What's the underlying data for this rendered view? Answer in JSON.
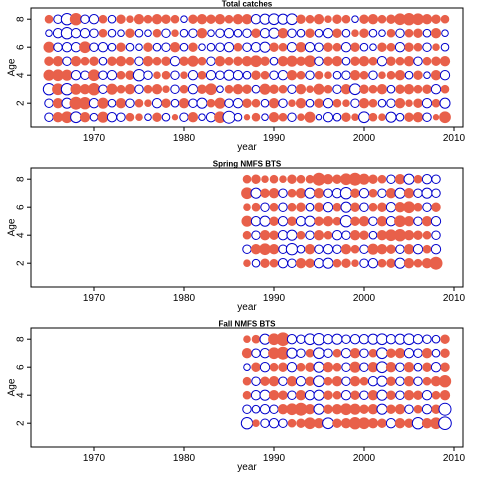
{
  "colors": {
    "positive": "#e8604a",
    "negative": "#0000cc",
    "axis": "#000000"
  },
  "chart_data": [
    {
      "type": "scatter",
      "title": "Total catches",
      "xlabel": "year",
      "ylabel": "Age",
      "xlim": [
        1963,
        2011
      ],
      "ylim": [
        0.3,
        8.8
      ],
      "xticks": [
        1970,
        1980,
        1990,
        2000,
        2010
      ],
      "yticks": [
        2,
        4,
        6,
        8
      ],
      "grid": false,
      "legend": "none",
      "x_start": 1965,
      "x_end": 2009,
      "ages": [
        1,
        2,
        3,
        4,
        5,
        6,
        7,
        8
      ],
      "residuals": [
        [
          -0.5,
          0.6,
          0.8,
          -0.8,
          0.6,
          -0.4,
          0.7,
          -0.6,
          -0.5,
          0.4,
          0.3,
          -0.3,
          0.5,
          -0.4,
          0.2,
          -0.5,
          0.6,
          -0.3,
          -0.6,
          0.8,
          -1.0,
          -0.4,
          0.2,
          0.4,
          -0.3,
          0.6,
          0.4,
          -0.5,
          0.3,
          0.7,
          -0.2,
          -0.6,
          -0.4,
          0.5,
          0.3,
          -0.8,
          0.4,
          0.3,
          -0.7,
          -0.4,
          0.5,
          0.6,
          -0.5,
          0.2,
          0.8
        ],
        [
          -0.5,
          0.6,
          -0.7,
          1.0,
          0.9,
          -0.6,
          0.7,
          -0.4,
          0.6,
          -0.5,
          0.4,
          0.3,
          -0.6,
          0.5,
          -0.4,
          0.6,
          -0.5,
          -0.7,
          0.4,
          0.7,
          -0.5,
          -0.6,
          0.5,
          0.4,
          -0.4,
          0.6,
          -0.5,
          0.3,
          0.6,
          -0.4,
          0.5,
          -0.6,
          0.4,
          0.3,
          -0.5,
          0.6,
          0.4,
          -0.4,
          -0.5,
          0.6,
          0.3,
          0.5,
          -0.6,
          0.4,
          -0.7
        ],
        [
          -0.9,
          0.8,
          -0.9,
          0.7,
          0.6,
          0.9,
          -0.5,
          0.7,
          0.4,
          0.6,
          -0.5,
          0.4,
          0.6,
          0.3,
          -0.5,
          0.4,
          -0.6,
          0.5,
          0.8,
          -0.3,
          0.4,
          0.6,
          0.5,
          -0.4,
          0.7,
          0.5,
          0.4,
          -0.5,
          0.6,
          0.3,
          0.7,
          0.4,
          -0.5,
          0.6,
          -0.8,
          0.5,
          0.4,
          0.6,
          -0.4,
          0.5,
          0.6,
          0.4,
          0.5,
          -0.6,
          0.4
        ],
        [
          0.7,
          0.8,
          0.7,
          -0.6,
          -0.5,
          0.8,
          -0.5,
          -0.6,
          0.4,
          0.5,
          -0.9,
          -0.5,
          0.3,
          0.4,
          -0.5,
          0.3,
          -0.6,
          0.4,
          -0.6,
          -0.5,
          -0.7,
          -0.6,
          -0.4,
          0.5,
          0.4,
          -0.5,
          -0.6,
          0.6,
          0.4,
          -0.5,
          0.4,
          0.3,
          -0.4,
          -0.5,
          0.6,
          0.4,
          -0.5,
          0.3,
          0.4,
          0.6,
          -0.4,
          0.5,
          -0.3,
          0.6,
          -0.6
        ],
        [
          0.5,
          0.6,
          -0.5,
          0.6,
          0.4,
          0.5,
          -0.4,
          0.5,
          0.6,
          0.4,
          -0.5,
          0.6,
          0.4,
          0.5,
          -0.6,
          0.5,
          0.7,
          0.4,
          -0.5,
          0.6,
          0.4,
          0.5,
          0.6,
          0.8,
          0.5,
          -0.4,
          0.6,
          0.7,
          0.5,
          0.8,
          -0.5,
          0.5,
          0.6,
          -0.4,
          0.5,
          0.6,
          0.4,
          -0.6,
          0.5,
          0.4,
          0.6,
          -0.5,
          0.4,
          0.5,
          0.6
        ],
        [
          0.7,
          -0.5,
          -0.6,
          -0.6,
          0.8,
          -0.5,
          -0.6,
          -0.4,
          0.5,
          -0.4,
          -0.3,
          0.5,
          -0.4,
          -0.5,
          0.6,
          -0.4,
          0.5,
          -0.3,
          -0.4,
          -0.5,
          -0.6,
          0.4,
          -0.5,
          -0.6,
          -0.7,
          0.5,
          0.4,
          -0.6,
          0.6,
          -0.6,
          -0.5,
          0.5,
          0.4,
          -0.6,
          0.5,
          -0.4,
          -0.3,
          0.5,
          0.4,
          -0.6,
          0.5,
          0.4,
          -0.5,
          0.3,
          -0.4
        ],
        [
          -0.3,
          -0.6,
          -0.9,
          -0.6,
          -0.6,
          -0.5,
          0.4,
          -0.4,
          -0.3,
          0.5,
          -0.4,
          -0.3,
          0.4,
          -0.5,
          0.3,
          -0.4,
          -0.5,
          0.6,
          -0.3,
          -0.5,
          -0.6,
          -0.4,
          -0.5,
          0.5,
          -0.6,
          -0.7,
          0.6,
          -0.5,
          -0.4,
          0.5,
          -0.4,
          -0.6,
          0.5,
          -0.4,
          0.3,
          0.5,
          -0.4,
          -0.3,
          0.4,
          -0.5,
          0.4,
          0.5,
          -0.4,
          0.6,
          -0.3
        ],
        [
          0.4,
          -0.5,
          -0.9,
          0.9,
          -0.5,
          -0.6,
          0.4,
          -0.4,
          0.5,
          0.3,
          0.6,
          0.4,
          0.6,
          0.5,
          0.4,
          -0.3,
          0.5,
          0.6,
          0.5,
          0.6,
          0.4,
          0.6,
          0.6,
          -0.6,
          -0.7,
          -0.8,
          -0.7,
          -0.8,
          0.5,
          0.4,
          0.6,
          0.3,
          0.5,
          0.4,
          -0.3,
          0.5,
          0.6,
          0.4,
          0.5,
          0.8,
          0.9,
          0.8,
          0.6,
          0.5,
          0.4
        ]
      ]
    },
    {
      "type": "scatter",
      "title": "Spring NMFS BTS",
      "xlabel": "year",
      "ylabel": "Age",
      "xlim": [
        1963,
        2011
      ],
      "ylim": [
        0.3,
        8.8
      ],
      "xticks": [
        1970,
        1980,
        1990,
        2000,
        2010
      ],
      "yticks": [
        2,
        4,
        6,
        8
      ],
      "grid": false,
      "legend": "none",
      "x_start": 1987,
      "x_end": 2008,
      "ages": [
        2,
        3,
        4,
        5,
        6,
        7,
        8
      ],
      "residuals": [
        [
          0.3,
          -0.4,
          0.5,
          0.4,
          -0.6,
          -0.5,
          0.6,
          0.5,
          -0.6,
          -0.7,
          0.4,
          0.5,
          0.3,
          -0.5,
          -0.6,
          0.4,
          0.5,
          -0.7,
          0.6,
          0.4,
          0.6,
          1.0
        ],
        [
          -0.5,
          0.6,
          0.8,
          0.6,
          -0.5,
          -0.9,
          -0.4,
          0.6,
          -0.5,
          -0.6,
          -0.5,
          0.6,
          0.4,
          -0.5,
          0.7,
          0.6,
          0.5,
          -0.5,
          0.6,
          -0.6,
          0.4,
          -0.6
        ],
        [
          0.4,
          -0.5,
          0.6,
          0.5,
          -0.6,
          -0.7,
          0.4,
          -0.5,
          0.6,
          0.4,
          -0.6,
          -0.5,
          0.6,
          0.5,
          -0.4,
          0.6,
          0.8,
          0.9,
          0.6,
          0.5,
          0.4,
          -0.5
        ],
        [
          0.7,
          -0.6,
          -0.7,
          0.5,
          -0.6,
          0.5,
          -0.6,
          -0.7,
          0.5,
          0.6,
          0.4,
          -0.9,
          0.5,
          0.6,
          -0.5,
          0.6,
          -0.6,
          0.8,
          0.6,
          -0.5,
          0.6,
          -0.6
        ],
        [
          0.3,
          0.4,
          -0.5,
          0.4,
          -0.5,
          0.4,
          0.5,
          -0.4,
          0.5,
          -0.6,
          0.4,
          -0.7,
          0.5,
          -0.5,
          0.4,
          0.5,
          -0.6,
          0.6,
          0.8,
          0.4,
          -0.5,
          0.5
        ],
        [
          0.8,
          -0.7,
          0.5,
          0.6,
          -0.5,
          0.4,
          0.6,
          -0.7,
          0.6,
          -0.5,
          -0.6,
          -0.9,
          0.5,
          -0.6,
          0.4,
          -0.5,
          0.6,
          -0.7,
          0.6,
          -0.5,
          -0.7,
          -0.5
        ],
        [
          0.4,
          0.5,
          0.3,
          0.4,
          0.3,
          0.5,
          0.4,
          0.4,
          1.0,
          0.6,
          0.5,
          0.8,
          1.0,
          0.7,
          0.5,
          0.4,
          -0.5,
          0.6,
          -0.7,
          0.4,
          -0.6,
          -0.5
        ]
      ]
    },
    {
      "type": "scatter",
      "title": "Fall NMFS BTS",
      "xlabel": "year",
      "ylabel": "Age",
      "xlim": [
        1963,
        2011
      ],
      "ylim": [
        0.3,
        8.8
      ],
      "xticks": [
        1970,
        1980,
        1990,
        2000,
        2010
      ],
      "yticks": [
        2,
        4,
        6,
        8
      ],
      "grid": false,
      "legend": "none",
      "x_start": 1987,
      "x_end": 2009,
      "ages": [
        2,
        3,
        4,
        5,
        6,
        7,
        8
      ],
      "residuals": [
        [
          -0.9,
          0.3,
          -0.5,
          -0.6,
          -0.5,
          0.4,
          0.5,
          0.8,
          0.6,
          -0.8,
          0.5,
          0.6,
          0.9,
          0.8,
          0.6,
          0.5,
          -0.6,
          0.6,
          0.5,
          -0.9,
          0.6,
          0.8,
          -1.1
        ],
        [
          -0.5,
          -0.4,
          -0.6,
          -0.5,
          0.6,
          0.8,
          1.0,
          0.6,
          -0.7,
          0.5,
          0.6,
          0.8,
          0.7,
          0.5,
          0.6,
          -0.7,
          0.5,
          0.6,
          -0.5,
          0.4,
          -0.6,
          0.5,
          -1.0
        ],
        [
          0.4,
          -0.6,
          -0.7,
          0.6,
          0.5,
          -0.5,
          0.6,
          -0.6,
          -0.7,
          0.5,
          0.4,
          -0.6,
          0.5,
          -0.5,
          0.6,
          -0.7,
          0.5,
          -0.5,
          0.6,
          0.5,
          -0.6,
          0.4,
          0.6
        ],
        [
          0.4,
          -0.5,
          0.5,
          0.6,
          -0.5,
          0.6,
          -0.6,
          0.5,
          -0.8,
          0.4,
          0.6,
          -0.5,
          0.6,
          0.4,
          -0.6,
          -0.7,
          0.5,
          -0.5,
          0.6,
          -0.5,
          0.4,
          0.6,
          0.9
        ],
        [
          -0.3,
          0.5,
          -0.6,
          0.4,
          0.5,
          -0.6,
          0.4,
          0.5,
          -0.7,
          0.6,
          0.4,
          -0.5,
          0.7,
          -0.5,
          0.6,
          -0.8,
          0.6,
          -0.5,
          0.6,
          -0.4,
          0.5,
          -0.6,
          0.5
        ],
        [
          0.6,
          -0.5,
          -0.6,
          0.8,
          1.0,
          -0.7,
          -0.5,
          0.4,
          -0.8,
          -0.5,
          0.4,
          -0.6,
          0.6,
          -0.5,
          0.4,
          -0.8,
          0.5,
          0.6,
          -0.6,
          -0.5,
          0.6,
          -0.4,
          0.5
        ],
        [
          0.3,
          0.4,
          -0.7,
          0.8,
          1.1,
          -0.6,
          -0.5,
          -0.8,
          -0.9,
          -0.6,
          -0.7,
          -0.5,
          -0.6,
          -0.6,
          -0.7,
          -0.8,
          -0.6,
          -0.7,
          -0.8,
          -0.6,
          -0.5,
          -0.4,
          0.5
        ]
      ]
    }
  ]
}
